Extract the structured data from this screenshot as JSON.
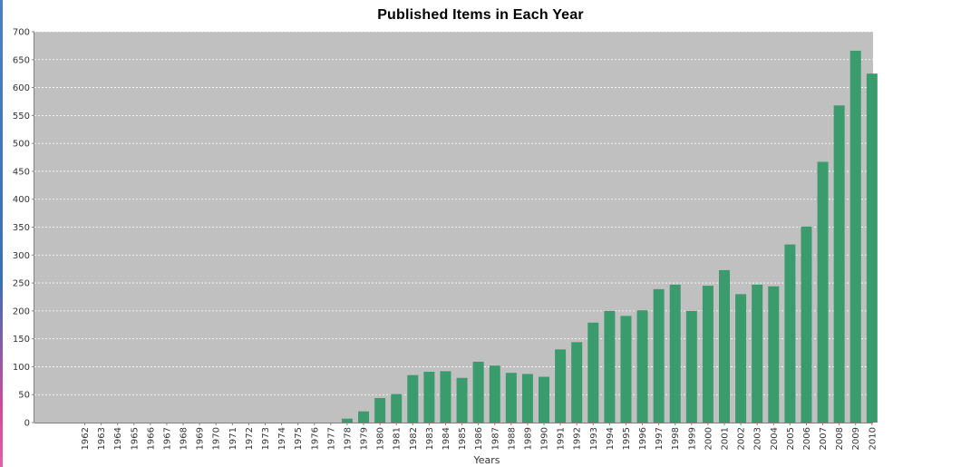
{
  "chart_data": {
    "type": "bar",
    "title": "Published Items in Each Year",
    "xlabel": "Years",
    "ylabel": "",
    "ylim": [
      0,
      700
    ],
    "yticks": [
      0,
      50,
      100,
      150,
      200,
      250,
      300,
      350,
      400,
      450,
      500,
      550,
      600,
      650,
      700
    ],
    "grid": true,
    "legend": "none",
    "categories": [
      "1962",
      "1963",
      "1964",
      "1965",
      "1966",
      "1967",
      "1968",
      "1969",
      "1970",
      "1971",
      "1972",
      "1973",
      "1974",
      "1975",
      "1976",
      "1977",
      "1978",
      "1979",
      "1980",
      "1981",
      "1982",
      "1983",
      "1984",
      "1985",
      "1986",
      "1987",
      "1988",
      "1989",
      "1990",
      "1991",
      "1992",
      "1993",
      "1994",
      "1995",
      "1996",
      "1997",
      "1998",
      "1999",
      "2000",
      "2001",
      "2002",
      "2003",
      "2004",
      "2005",
      "2006",
      "2007",
      "2008",
      "2009",
      "2010"
    ],
    "values": [
      0,
      0,
      0,
      0,
      0,
      0,
      0,
      0,
      0,
      0,
      0,
      0,
      0,
      0,
      0,
      0,
      7,
      20,
      44,
      51,
      85,
      91,
      92,
      80,
      109,
      102,
      89,
      87,
      82,
      131,
      144,
      179,
      200,
      191,
      201,
      239,
      247,
      200,
      245,
      273,
      230,
      247,
      244,
      319,
      351,
      467,
      568,
      666,
      625
    ]
  },
  "colors": {
    "plot_background": "#c0c0c0",
    "bar": "#3a9b6c",
    "grid": "#ffffff",
    "axis_text": "#333333",
    "edge_strip": "#3a6fb5"
  }
}
